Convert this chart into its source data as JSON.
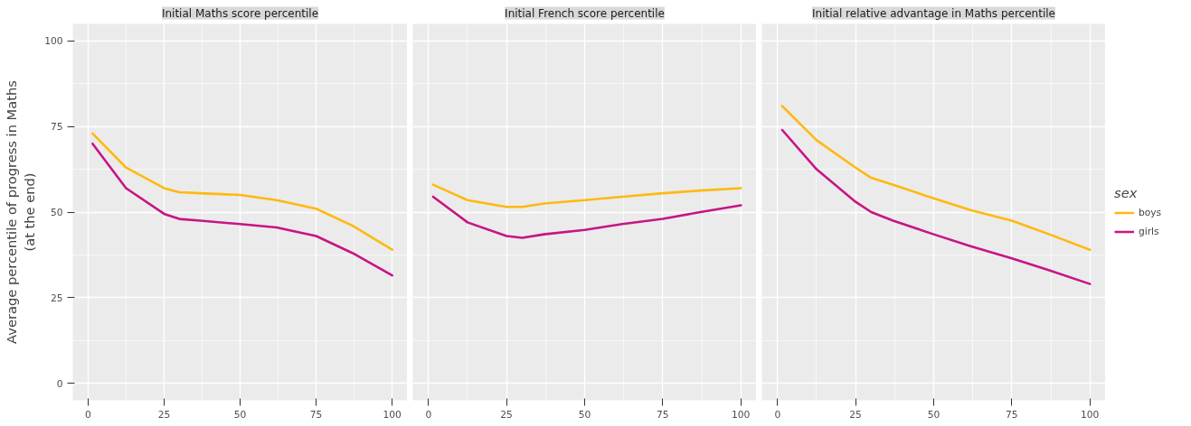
{
  "chart_data": [
    {
      "type": "line",
      "title": "Initial Maths score percentile",
      "ylabel": "Average percentile of progress in Maths\n(at the end)",
      "x": [
        1.5,
        12.5,
        25,
        30,
        37,
        50,
        62,
        75,
        87,
        100
      ],
      "xlim": [
        -5,
        105
      ],
      "ylim": [
        -5,
        105
      ],
      "xticks": [
        0,
        25,
        50,
        75,
        100
      ],
      "yticks": [
        0,
        25,
        50,
        75,
        100
      ],
      "grid": true,
      "legend": false,
      "series": [
        {
          "color": "#ffb90f",
          "values": [
            73,
            63,
            57,
            55.8,
            55.5,
            55,
            53.5,
            51,
            46,
            39
          ]
        },
        {
          "color": "#c71585",
          "values": [
            70,
            57,
            49.5,
            48,
            47.5,
            46.5,
            45.5,
            43,
            38,
            31.5
          ]
        }
      ]
    },
    {
      "type": "line",
      "title": "Initial French score percentile",
      "x": [
        1.5,
        12.5,
        25,
        30,
        37,
        50,
        62,
        75,
        87,
        100
      ],
      "xlim": [
        -5,
        105
      ],
      "ylim": [
        -5,
        105
      ],
      "xticks": [
        0,
        25,
        50,
        75,
        100
      ],
      "yticks": [
        0,
        25,
        50,
        75,
        100
      ],
      "grid": true,
      "legend": false,
      "tick_labels": "x",
      "series": [
        {
          "color": "#ffb90f",
          "values": [
            58,
            53.5,
            51.5,
            51.5,
            52.5,
            53.5,
            54.5,
            55.5,
            56.3,
            57
          ]
        },
        {
          "color": "#c71585",
          "values": [
            54.5,
            47,
            43,
            42.5,
            43.5,
            44.8,
            46.5,
            48,
            50,
            52
          ]
        }
      ]
    },
    {
      "type": "line",
      "title": "Initial relative advantage in Maths percentile",
      "x": [
        1.5,
        12.5,
        25,
        30,
        37,
        50,
        62,
        75,
        87,
        100
      ],
      "xlim": [
        -5,
        105
      ],
      "ylim": [
        -5,
        105
      ],
      "xticks": [
        0,
        25,
        50,
        75,
        100
      ],
      "yticks": [
        0,
        25,
        50,
        75,
        100
      ],
      "grid": true,
      "legend": "right",
      "legend_title": "sex",
      "tick_labels": "x",
      "series": [
        {
          "name": "boys",
          "color": "#ffb90f",
          "values": [
            81,
            71,
            63,
            60,
            58,
            54,
            50.5,
            47.5,
            43.5,
            39
          ]
        },
        {
          "name": "girls",
          "color": "#c71585",
          "values": [
            74,
            62.5,
            53,
            50,
            47.5,
            43.5,
            40,
            36.5,
            33,
            29
          ]
        }
      ]
    }
  ]
}
